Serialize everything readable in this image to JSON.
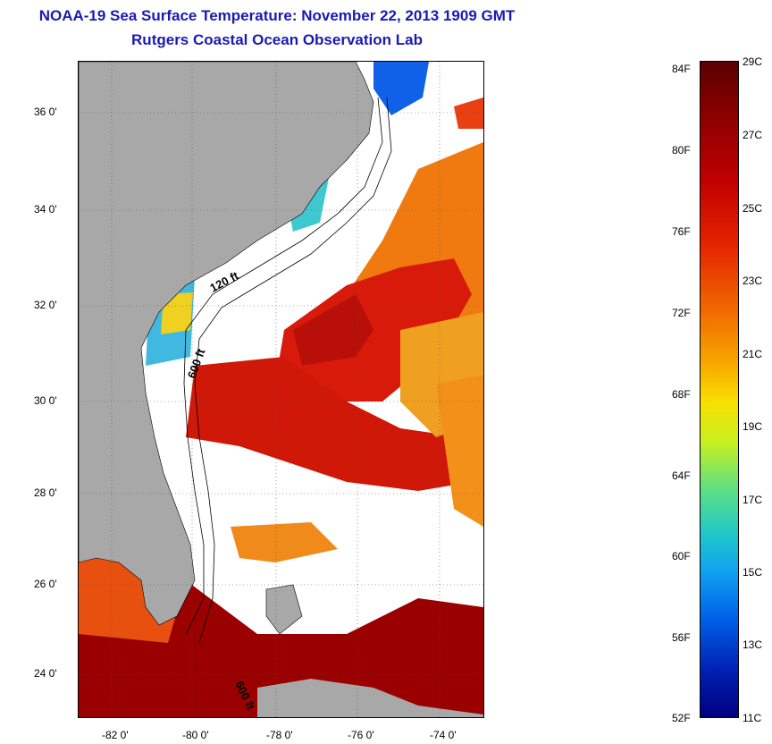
{
  "title": "NOAA-19 Sea Surface Temperature:  November 22, 2013 1909 GMT",
  "subtitle": "Rutgers Coastal Ocean Observation Lab",
  "map": {
    "lat_labels": [
      "36 0'",
      "34 0'",
      "32 0'",
      "30 0'",
      "28 0'",
      "26 0'",
      "24 0'"
    ],
    "lon_labels": [
      "-82 0'",
      "-80 0'",
      "-78 0'",
      "-76 0'",
      "-74 0'"
    ],
    "contour_labels": [
      "120 ft",
      "600 ft",
      "600 ft"
    ]
  },
  "colorbar": {
    "fahrenheit": [
      "84F",
      "80F",
      "76F",
      "72F",
      "68F",
      "64F",
      "60F",
      "56F",
      "52F"
    ],
    "celsius": [
      "29C",
      "27C",
      "25C",
      "23C",
      "21C",
      "19C",
      "17C",
      "15C",
      "13C",
      "11C"
    ]
  },
  "colors": {
    "title": "#1a1ab4",
    "land": "#a8a8a8",
    "warm_core": "#d01808",
    "hot": "#8a0000"
  }
}
